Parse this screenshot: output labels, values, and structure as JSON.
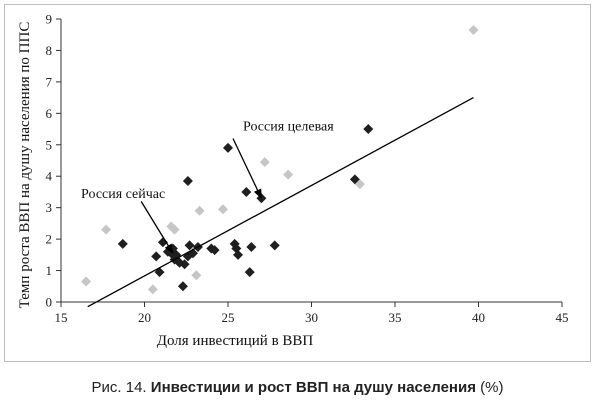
{
  "chart_data": {
    "type": "scatter",
    "xlabel": "Доля инвестиций в ВВП",
    "ylabel": "Темп роста ВВП на душу населения по ППС",
    "xlim": [
      15,
      45
    ],
    "ylim": [
      0,
      9
    ],
    "xticks": [
      15,
      20,
      25,
      30,
      35,
      40,
      45
    ],
    "yticks": [
      0,
      1,
      2,
      3,
      4,
      5,
      6,
      7,
      8,
      9
    ],
    "colors": {
      "dark": "#1f1f1f",
      "light": "#c6c6c6",
      "line": "#000000"
    },
    "series": [
      {
        "marker": "diamond-dark",
        "points": [
          [
            18.7,
            1.85
          ],
          [
            20.7,
            1.45
          ],
          [
            20.9,
            0.95
          ],
          [
            21.1,
            1.9
          ],
          [
            21.4,
            1.6
          ],
          [
            21.6,
            1.55
          ],
          [
            21.7,
            1.7
          ],
          [
            21.8,
            1.35
          ],
          [
            21.9,
            1.5
          ],
          [
            22.0,
            1.3
          ],
          [
            22.1,
            1.25
          ],
          [
            22.3,
            0.5
          ],
          [
            22.4,
            1.2
          ],
          [
            22.6,
            1.45
          ],
          [
            22.6,
            3.85
          ],
          [
            22.7,
            1.8
          ],
          [
            22.9,
            1.55
          ],
          [
            23.2,
            1.75
          ],
          [
            24.0,
            1.7
          ],
          [
            24.2,
            1.65
          ],
          [
            25.0,
            4.9
          ],
          [
            25.4,
            1.85
          ],
          [
            25.5,
            1.7
          ],
          [
            25.6,
            1.5
          ],
          [
            26.1,
            3.5
          ],
          [
            26.3,
            0.95
          ],
          [
            26.4,
            1.75
          ],
          [
            27.0,
            3.3
          ],
          [
            27.8,
            1.8
          ],
          [
            32.6,
            3.9
          ],
          [
            33.4,
            5.5
          ]
        ]
      },
      {
        "marker": "diamond-light",
        "points": [
          [
            16.5,
            0.65
          ],
          [
            17.7,
            2.3
          ],
          [
            20.5,
            0.4
          ],
          [
            21.6,
            2.4
          ],
          [
            21.8,
            2.3
          ],
          [
            23.1,
            0.85
          ],
          [
            23.3,
            2.9
          ],
          [
            24.7,
            2.95
          ],
          [
            27.2,
            4.45
          ],
          [
            28.6,
            4.05
          ],
          [
            32.9,
            3.75
          ],
          [
            39.7,
            8.65
          ]
        ]
      }
    ],
    "trendline": {
      "from": [
        16.6,
        -0.15
      ],
      "to": [
        39.7,
        6.5
      ]
    },
    "annotations": [
      {
        "text": "Россия сейчас",
        "label_at": [
          16.2,
          3.3
        ],
        "from": [
          19.8,
          3.2
        ],
        "to": [
          21.7,
          1.55
        ]
      },
      {
        "text": "Россия целевая",
        "label_at": [
          25.9,
          5.45
        ],
        "from": [
          25.3,
          5.2
        ],
        "to": [
          27.0,
          3.3
        ]
      }
    ]
  },
  "caption": {
    "prefix": "Рис. 14.",
    "title": "Инвестиции и рост ВВП на душу населения",
    "suffix": "(%)"
  }
}
